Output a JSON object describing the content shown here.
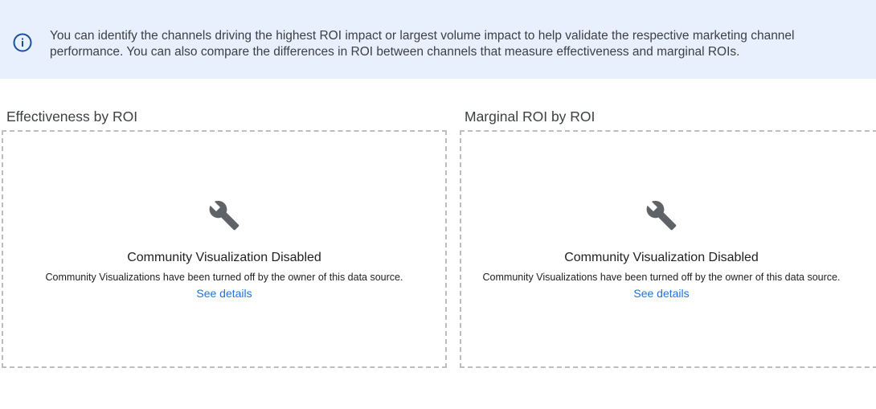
{
  "banner": {
    "icon": "info-icon",
    "text": "You can identify the channels driving the highest ROI impact or largest volume impact to help validate the respective marketing channel performance. You can also compare the differences in ROI between channels that measure effectiveness and marginal ROIs."
  },
  "charts": [
    {
      "title": "Effectiveness by ROI",
      "icon": "wrench-icon",
      "status_title": "Community Visualization Disabled",
      "message": "Community Visualizations have been turned off by the owner of this data source.",
      "link": "See details"
    },
    {
      "title": "Marginal ROI by ROI",
      "icon": "wrench-icon",
      "status_title": "Community Visualization Disabled",
      "message": "Community Visualizations have been turned off by the owner of this data source.",
      "link": "See details"
    }
  ],
  "colors": {
    "banner_bg": "#e8f0fe",
    "info_icon": "#1a4f9c",
    "link": "#1a73e8",
    "icon_gray": "#5f6368"
  }
}
